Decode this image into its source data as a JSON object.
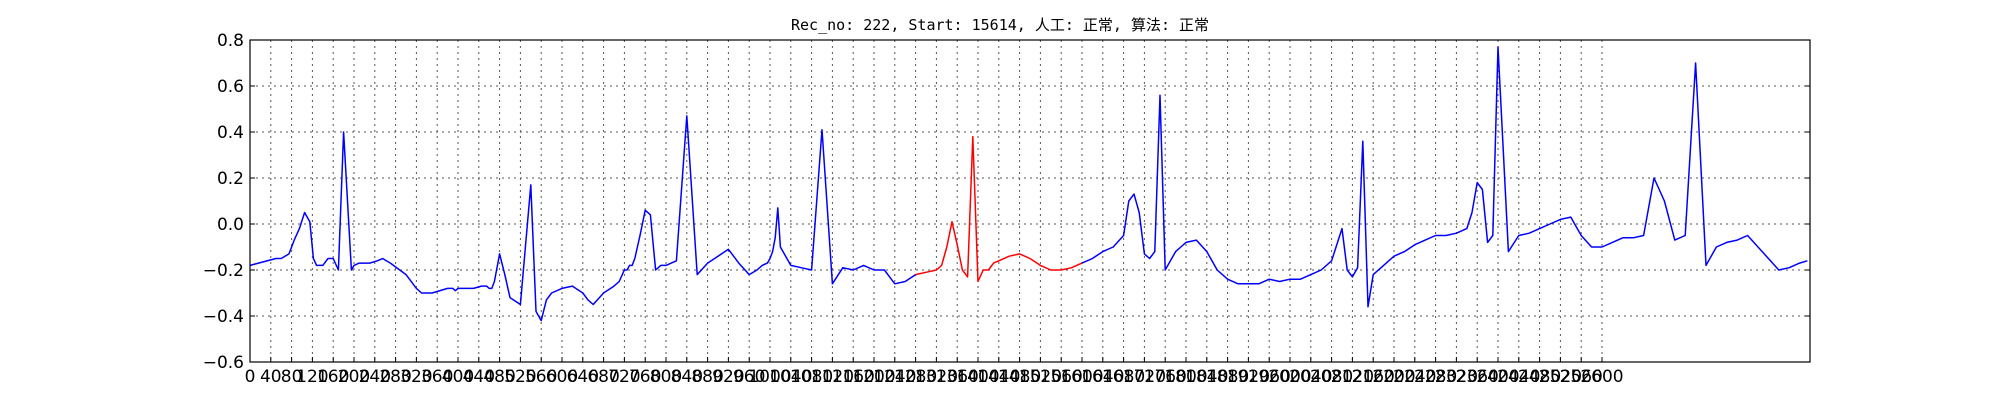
{
  "chart_data": {
    "type": "line",
    "title": "Rec_no: 222, Start: 15614, 人工: 正常, 算法: 正常",
    "xlabel": "",
    "ylabel": "",
    "xlim": [
      0,
      3000
    ],
    "ylim": [
      -0.6,
      0.8
    ],
    "grid": true,
    "legend": "none",
    "xtick_values": [
      0,
      40,
      80,
      120,
      160,
      200,
      240,
      280,
      320,
      360,
      400,
      440,
      480,
      520,
      560,
      600,
      640,
      680,
      720,
      760,
      800,
      840,
      880,
      920,
      960,
      1000,
      1040,
      1080,
      1120,
      1160,
      1200,
      1240,
      1280,
      1320,
      1360,
      1400,
      1440,
      1480,
      1520,
      1560,
      1600,
      1640,
      1680,
      1720,
      1760,
      1800,
      1840,
      1880,
      1920,
      1960,
      2000,
      2040,
      2080,
      2120,
      2160,
      2200,
      2240,
      2280,
      2320,
      2360,
      2400,
      2440,
      2480,
      2520,
      2560,
      2600
    ],
    "xtick_labels": [
      "0",
      "40",
      "80",
      "120",
      "160",
      "200",
      "240",
      "280",
      "320",
      "360",
      "400",
      "440",
      "480",
      "520",
      "560",
      "600",
      "640",
      "680",
      "720",
      "760",
      "800",
      "840",
      "880",
      "920",
      "960",
      "1000",
      "1040",
      "1080",
      "1120",
      "1160",
      "1200",
      "1240",
      "1280",
      "1320",
      "1360",
      "1400",
      "1440",
      "1480",
      "1520",
      "1560",
      "1600",
      "1640",
      "1680",
      "1720",
      "1760",
      "1800",
      "1840",
      "1880",
      "1920",
      "1960",
      "2000",
      "2040",
      "2080",
      "2120",
      "2160",
      "2200",
      "2240",
      "2280",
      "2320",
      "2360",
      "2400",
      "2440",
      "2480",
      "2520",
      "2560",
      "2600"
    ],
    "ytick_values": [
      -0.6,
      -0.4,
      -0.2,
      0.0,
      0.2,
      0.4,
      0.6,
      0.8
    ],
    "ytick_labels": [
      "−0.6",
      "−0.4",
      "−0.2",
      "0.0",
      "0.2",
      "0.4",
      "0.6",
      "0.8"
    ],
    "series": [
      {
        "color": "#0000ff",
        "x": [
          0,
          50,
          60,
          75,
          85,
          95,
          105,
          115,
          122,
          128,
          135,
          140,
          150,
          160,
          170,
          180,
          195,
          200,
          210,
          230,
          245,
          255,
          270,
          300,
          320,
          330,
          350,
          380,
          390,
          395,
          400,
          410,
          420,
          430,
          445,
          455,
          460,
          465,
          470,
          480,
          490,
          500,
          520,
          540,
          550,
          560,
          570,
          580,
          600,
          620,
          640,
          650,
          660,
          680,
          700,
          710,
          716,
          720,
          725,
          730,
          735,
          740,
          750,
          760,
          770,
          780,
          790,
          800,
          820,
          840,
          860,
          880,
          900,
          920,
          940,
          960,
          975,
          985,
          995,
          1000,
          1005,
          1010,
          1015,
          1020,
          1040,
          1060,
          1080,
          1100,
          1120,
          1140,
          1160,
          1180,
          1200,
          1220,
          1240,
          1260,
          1280
        ],
        "y": [
          -0.18,
          -0.15,
          -0.15,
          -0.13,
          -0.07,
          -0.02,
          0.05,
          0.01,
          -0.15,
          -0.18,
          -0.18,
          -0.18,
          -0.15,
          -0.15,
          -0.2,
          0.4,
          -0.2,
          -0.18,
          -0.17,
          -0.17,
          -0.16,
          -0.15,
          -0.17,
          -0.22,
          -0.28,
          -0.3,
          -0.3,
          -0.28,
          -0.28,
          -0.29,
          -0.28,
          -0.28,
          -0.28,
          -0.28,
          -0.27,
          -0.27,
          -0.28,
          -0.28,
          -0.25,
          -0.13,
          -0.22,
          -0.32,
          -0.35,
          0.17,
          -0.38,
          -0.42,
          -0.33,
          -0.3,
          -0.28,
          -0.27,
          -0.3,
          -0.33,
          -0.35,
          -0.3,
          -0.27,
          -0.25,
          -0.22,
          -0.2,
          -0.2,
          -0.18,
          -0.18,
          -0.15,
          -0.05,
          0.06,
          0.04,
          -0.2,
          -0.18,
          -0.18,
          -0.16,
          0.47,
          -0.22,
          -0.17,
          -0.14,
          -0.11,
          -0.17,
          -0.22,
          -0.2,
          -0.18,
          -0.17,
          -0.15,
          -0.12,
          -0.06,
          0.07,
          -0.1,
          -0.18,
          -0.19,
          -0.2,
          0.41,
          -0.26,
          -0.19,
          -0.2,
          -0.18,
          -0.2,
          -0.2,
          -0.26,
          -0.25,
          -0.22
        ]
      },
      {
        "color": "#ff0000",
        "x": [
          1280,
          1300,
          1320,
          1330,
          1340,
          1350,
          1360,
          1370,
          1380,
          1390,
          1400,
          1410,
          1420,
          1430,
          1440,
          1460,
          1480,
          1500,
          1520,
          1540,
          1560,
          1580,
          1600
        ],
        "y": [
          -0.22,
          -0.21,
          -0.2,
          -0.18,
          -0.1,
          0.01,
          -0.09,
          -0.2,
          -0.23,
          0.38,
          -0.25,
          -0.2,
          -0.2,
          -0.17,
          -0.16,
          -0.14,
          -0.13,
          -0.15,
          -0.18,
          -0.2,
          -0.2,
          -0.19,
          -0.17
        ]
      },
      {
        "color": "#0000ff",
        "x": [
          1600,
          1620,
          1640,
          1660,
          1680,
          1690,
          1700,
          1710,
          1720,
          1730,
          1740,
          1750,
          1760,
          1780,
          1790,
          1800,
          1820,
          1840,
          1860,
          1880,
          1900,
          1920,
          1940,
          1960,
          1980,
          2000,
          2020,
          2040,
          2060,
          2080,
          2100,
          2110,
          2120,
          2130,
          2140,
          2150,
          2160,
          2180,
          2200,
          2220,
          2240,
          2260,
          2280,
          2300,
          2320,
          2340,
          2350,
          2360,
          2370,
          2380,
          2390,
          2400,
          2420,
          2440,
          2460,
          2480,
          2500,
          2520,
          2540,
          2560,
          2580,
          2600,
          2620,
          2640,
          2660,
          2680,
          2700,
          2720,
          2740,
          2760,
          2780,
          2800,
          2820,
          2840,
          2860,
          2880,
          2900,
          2920,
          2940,
          2960,
          2980,
          2995
        ],
        "y": [
          -0.17,
          -0.15,
          -0.12,
          -0.1,
          -0.05,
          0.1,
          0.13,
          0.05,
          -0.13,
          -0.15,
          -0.12,
          0.56,
          -0.2,
          -0.12,
          -0.1,
          -0.08,
          -0.07,
          -0.12,
          -0.2,
          -0.24,
          -0.26,
          -0.26,
          -0.26,
          -0.24,
          -0.25,
          -0.24,
          -0.24,
          -0.22,
          -0.2,
          -0.16,
          -0.02,
          -0.2,
          -0.23,
          -0.19,
          0.36,
          -0.36,
          -0.22,
          -0.18,
          -0.14,
          -0.12,
          -0.09,
          -0.07,
          -0.05,
          -0.05,
          -0.04,
          -0.02,
          0.05,
          0.18,
          0.15,
          -0.08,
          -0.05,
          0.77,
          -0.12,
          -0.05,
          -0.04,
          -0.02,
          0.0,
          0.02,
          0.03,
          -0.05,
          -0.1,
          -0.1,
          -0.08,
          -0.06,
          -0.06,
          -0.05,
          0.2,
          0.1,
          -0.07,
          -0.05,
          0.7,
          -0.18,
          -0.1,
          -0.08,
          -0.07,
          -0.05,
          -0.1,
          -0.15,
          -0.2,
          -0.19,
          -0.17,
          -0.16
        ]
      }
    ]
  }
}
